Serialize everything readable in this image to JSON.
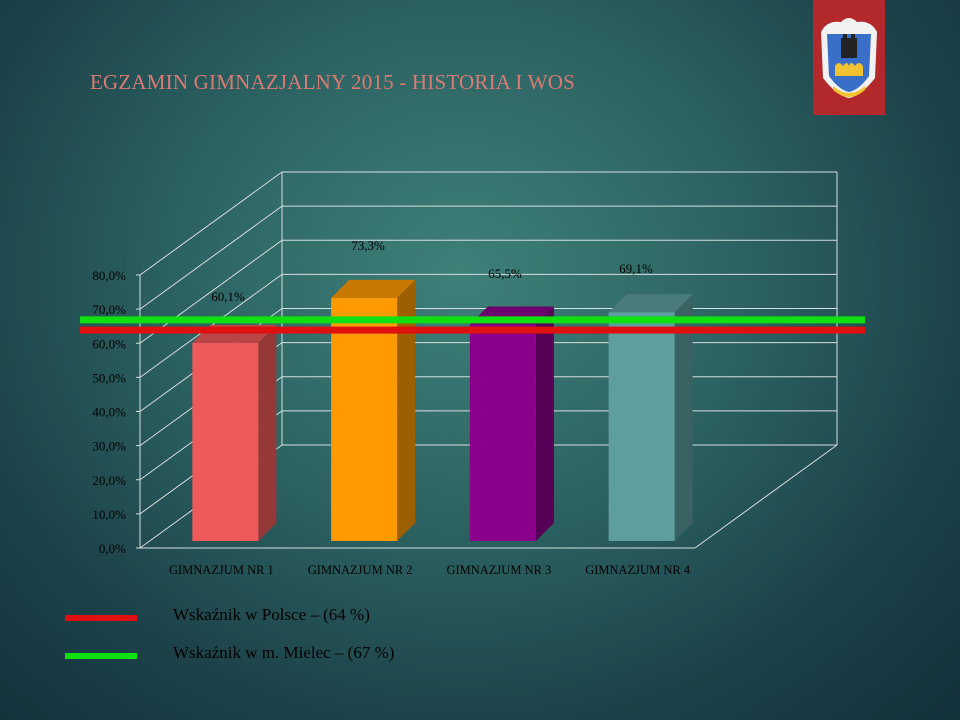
{
  "slide": {
    "title": "EGZAMIN GIMNAZJALNY 2015 - HISTORIA I WOS",
    "logo_icon": "coat-of-arms-icon"
  },
  "chart_data": {
    "type": "bar",
    "title": "",
    "xlabel": "",
    "ylabel": "",
    "categories": [
      "GIMNAZJUM NR 1",
      "GIMNAZJUM NR 2",
      "GIMNAZJUM NR 3",
      "GIMNAZJUM NR 4"
    ],
    "values": [
      60.1,
      73.3,
      65.5,
      69.1
    ],
    "data_labels": [
      "60,1%",
      "73,3%",
      "65,5%",
      "69,1%"
    ],
    "colors": [
      "#ee5a5a",
      "#ff9a00",
      "#8a008a",
      "#5f9e9e"
    ],
    "ylim": [
      0,
      80
    ],
    "yticks": [
      0,
      10,
      20,
      30,
      40,
      50,
      60,
      70,
      80
    ],
    "ytick_labels": [
      "0,0%",
      "10,0%",
      "20,0%",
      "30,0%",
      "40,0%",
      "50,0%",
      "60,0%",
      "70,0%",
      "80,0%"
    ],
    "grid": true,
    "reference_lines": [
      {
        "label": "Wskaźnik w Polsce – (64 %)",
        "value": 64,
        "color": "#e01010"
      },
      {
        "label": "Wskaźnik w m. Mielec – (67 %)",
        "value": 67,
        "color": "#10e010"
      }
    ],
    "legend_position": "bottom-left"
  }
}
